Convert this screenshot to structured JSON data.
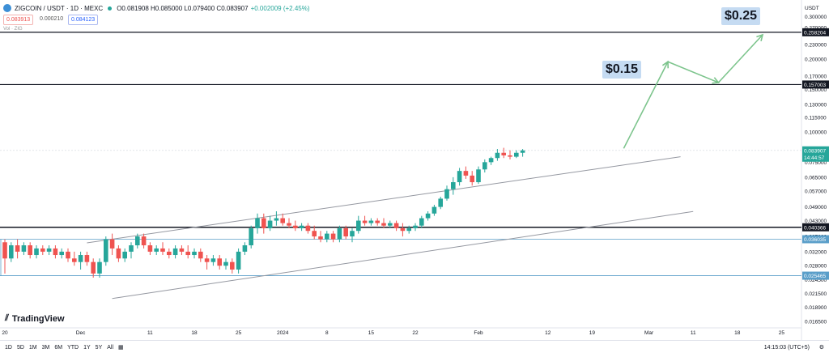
{
  "header": {
    "symbol": "ZIGCOIN / USDT · 1D · MEXC",
    "ohlc": "O0.081908 H0.085000 L0.079400 C0.083907",
    "change": "+0.002009 (+2.45%)",
    "sell_price": "0.083913",
    "spread": "0.000210",
    "buy_price": "0.084123",
    "volume_label": "Vol · ZIG"
  },
  "currency": "USDT",
  "price_labels": {
    "current": "0.083907",
    "countdown": "14:44:57",
    "line_0258": "0.258204",
    "line_0157": "0.157003",
    "line_0040": "0.040366",
    "line_0036": "0.036035",
    "line_0025": "0.025465"
  },
  "targets": {
    "t1": "$0.15",
    "t2": "$0.25"
  },
  "watermark": "TradingView",
  "bottom_bar": {
    "timeframes": [
      "1D",
      "5D",
      "1M",
      "3M",
      "6M",
      "YTD",
      "1Y",
      "5Y",
      "All"
    ],
    "clock": "14:15:03 (UTC+5)"
  },
  "colors": {
    "up": "#26a69a",
    "down": "#ef5350",
    "arrow": "#7cc48c",
    "channel": "#9598a1",
    "level": "#131722",
    "support": "#5a9ec9"
  },
  "chart_data": {
    "type": "candlestick",
    "y_scale": "log",
    "ylim": [
      0.0155,
      0.33
    ],
    "y_ticks": [
      "0.300000",
      "0.270000",
      "0.230000",
      "0.200000",
      "0.170000",
      "0.150000",
      "0.130000",
      "0.115000",
      "0.100000",
      "0.085000",
      "0.075000",
      "0.065000",
      "0.057000",
      "0.049000",
      "0.043000",
      "0.037000",
      "0.032000",
      "0.028000",
      "0.024500",
      "0.021500",
      "0.018900",
      "0.016500"
    ],
    "x_ticks": [
      "20",
      "Dec",
      "11",
      "18",
      "25",
      "2024",
      "8",
      "15",
      "22",
      "Feb",
      "12",
      "19",
      "Mar",
      "11",
      "18",
      "25"
    ],
    "x_tick_index": [
      0,
      12,
      23,
      30,
      37,
      44,
      51,
      58,
      65,
      75,
      86,
      93,
      102,
      109,
      116,
      123
    ],
    "candles": [
      [
        0.035,
        0.036,
        0.026,
        0.03
      ],
      [
        0.03,
        0.035,
        0.029,
        0.034
      ],
      [
        0.034,
        0.036,
        0.03,
        0.032
      ],
      [
        0.032,
        0.035,
        0.031,
        0.034
      ],
      [
        0.034,
        0.035,
        0.03,
        0.031
      ],
      [
        0.031,
        0.034,
        0.03,
        0.033
      ],
      [
        0.033,
        0.034,
        0.031,
        0.032
      ],
      [
        0.032,
        0.034,
        0.031,
        0.033
      ],
      [
        0.033,
        0.034,
        0.03,
        0.031
      ],
      [
        0.031,
        0.033,
        0.03,
        0.032
      ],
      [
        0.032,
        0.033,
        0.029,
        0.03
      ],
      [
        0.03,
        0.032,
        0.028,
        0.029
      ],
      [
        0.029,
        0.032,
        0.027,
        0.031
      ],
      [
        0.031,
        0.032,
        0.028,
        0.029
      ],
      [
        0.029,
        0.03,
        0.025,
        0.026
      ],
      [
        0.026,
        0.03,
        0.025,
        0.029
      ],
      [
        0.029,
        0.037,
        0.028,
        0.036
      ],
      [
        0.036,
        0.038,
        0.031,
        0.033
      ],
      [
        0.033,
        0.034,
        0.029,
        0.03
      ],
      [
        0.03,
        0.033,
        0.029,
        0.032
      ],
      [
        0.032,
        0.035,
        0.03,
        0.034
      ],
      [
        0.034,
        0.038,
        0.033,
        0.037
      ],
      [
        0.037,
        0.038,
        0.033,
        0.034
      ],
      [
        0.034,
        0.035,
        0.031,
        0.032
      ],
      [
        0.032,
        0.034,
        0.031,
        0.033
      ],
      [
        0.033,
        0.035,
        0.031,
        0.032
      ],
      [
        0.032,
        0.033,
        0.03,
        0.031
      ],
      [
        0.031,
        0.034,
        0.03,
        0.033
      ],
      [
        0.033,
        0.034,
        0.031,
        0.032
      ],
      [
        0.032,
        0.034,
        0.03,
        0.031
      ],
      [
        0.031,
        0.033,
        0.03,
        0.032
      ],
      [
        0.032,
        0.033,
        0.029,
        0.03
      ],
      [
        0.03,
        0.031,
        0.027,
        0.029
      ],
      [
        0.029,
        0.031,
        0.028,
        0.03
      ],
      [
        0.03,
        0.031,
        0.027,
        0.028
      ],
      [
        0.028,
        0.03,
        0.027,
        0.029
      ],
      [
        0.029,
        0.03,
        0.026,
        0.027
      ],
      [
        0.027,
        0.033,
        0.026,
        0.032
      ],
      [
        0.032,
        0.035,
        0.031,
        0.034
      ],
      [
        0.034,
        0.041,
        0.033,
        0.04
      ],
      [
        0.04,
        0.046,
        0.038,
        0.044
      ],
      [
        0.044,
        0.046,
        0.038,
        0.04
      ],
      [
        0.04,
        0.045,
        0.039,
        0.043
      ],
      [
        0.043,
        0.047,
        0.041,
        0.044
      ],
      [
        0.044,
        0.046,
        0.041,
        0.042
      ],
      [
        0.042,
        0.044,
        0.04,
        0.041
      ],
      [
        0.041,
        0.043,
        0.039,
        0.04
      ],
      [
        0.04,
        0.042,
        0.039,
        0.041
      ],
      [
        0.041,
        0.042,
        0.038,
        0.039
      ],
      [
        0.039,
        0.041,
        0.036,
        0.037
      ],
      [
        0.037,
        0.039,
        0.035,
        0.036
      ],
      [
        0.036,
        0.039,
        0.035,
        0.038
      ],
      [
        0.038,
        0.039,
        0.035,
        0.036
      ],
      [
        0.036,
        0.041,
        0.035,
        0.04
      ],
      [
        0.04,
        0.041,
        0.036,
        0.037
      ],
      [
        0.037,
        0.04,
        0.035,
        0.039
      ],
      [
        0.039,
        0.045,
        0.038,
        0.043
      ],
      [
        0.043,
        0.045,
        0.041,
        0.042
      ],
      [
        0.042,
        0.044,
        0.041,
        0.043
      ],
      [
        0.043,
        0.044,
        0.041,
        0.042
      ],
      [
        0.042,
        0.044,
        0.04,
        0.041
      ],
      [
        0.041,
        0.043,
        0.04,
        0.042
      ],
      [
        0.042,
        0.043,
        0.039,
        0.04
      ],
      [
        0.04,
        0.042,
        0.037,
        0.039
      ],
      [
        0.039,
        0.041,
        0.038,
        0.04
      ],
      [
        0.04,
        0.042,
        0.039,
        0.041
      ],
      [
        0.041,
        0.045,
        0.04,
        0.044
      ],
      [
        0.044,
        0.047,
        0.043,
        0.046
      ],
      [
        0.046,
        0.05,
        0.045,
        0.049
      ],
      [
        0.049,
        0.054,
        0.048,
        0.053
      ],
      [
        0.053,
        0.06,
        0.052,
        0.058
      ],
      [
        0.058,
        0.065,
        0.055,
        0.062
      ],
      [
        0.062,
        0.071,
        0.06,
        0.069
      ],
      [
        0.069,
        0.072,
        0.064,
        0.066
      ],
      [
        0.066,
        0.069,
        0.06,
        0.062
      ],
      [
        0.062,
        0.072,
        0.061,
        0.07
      ],
      [
        0.07,
        0.077,
        0.068,
        0.075
      ],
      [
        0.075,
        0.079,
        0.073,
        0.078
      ],
      [
        0.078,
        0.085,
        0.076,
        0.082
      ],
      [
        0.082,
        0.086,
        0.078,
        0.08
      ],
      [
        0.08,
        0.084,
        0.077,
        0.079
      ],
      [
        0.079,
        0.084,
        0.078,
        0.082
      ],
      [
        0.082,
        0.085,
        0.079,
        0.0839
      ]
    ]
  }
}
